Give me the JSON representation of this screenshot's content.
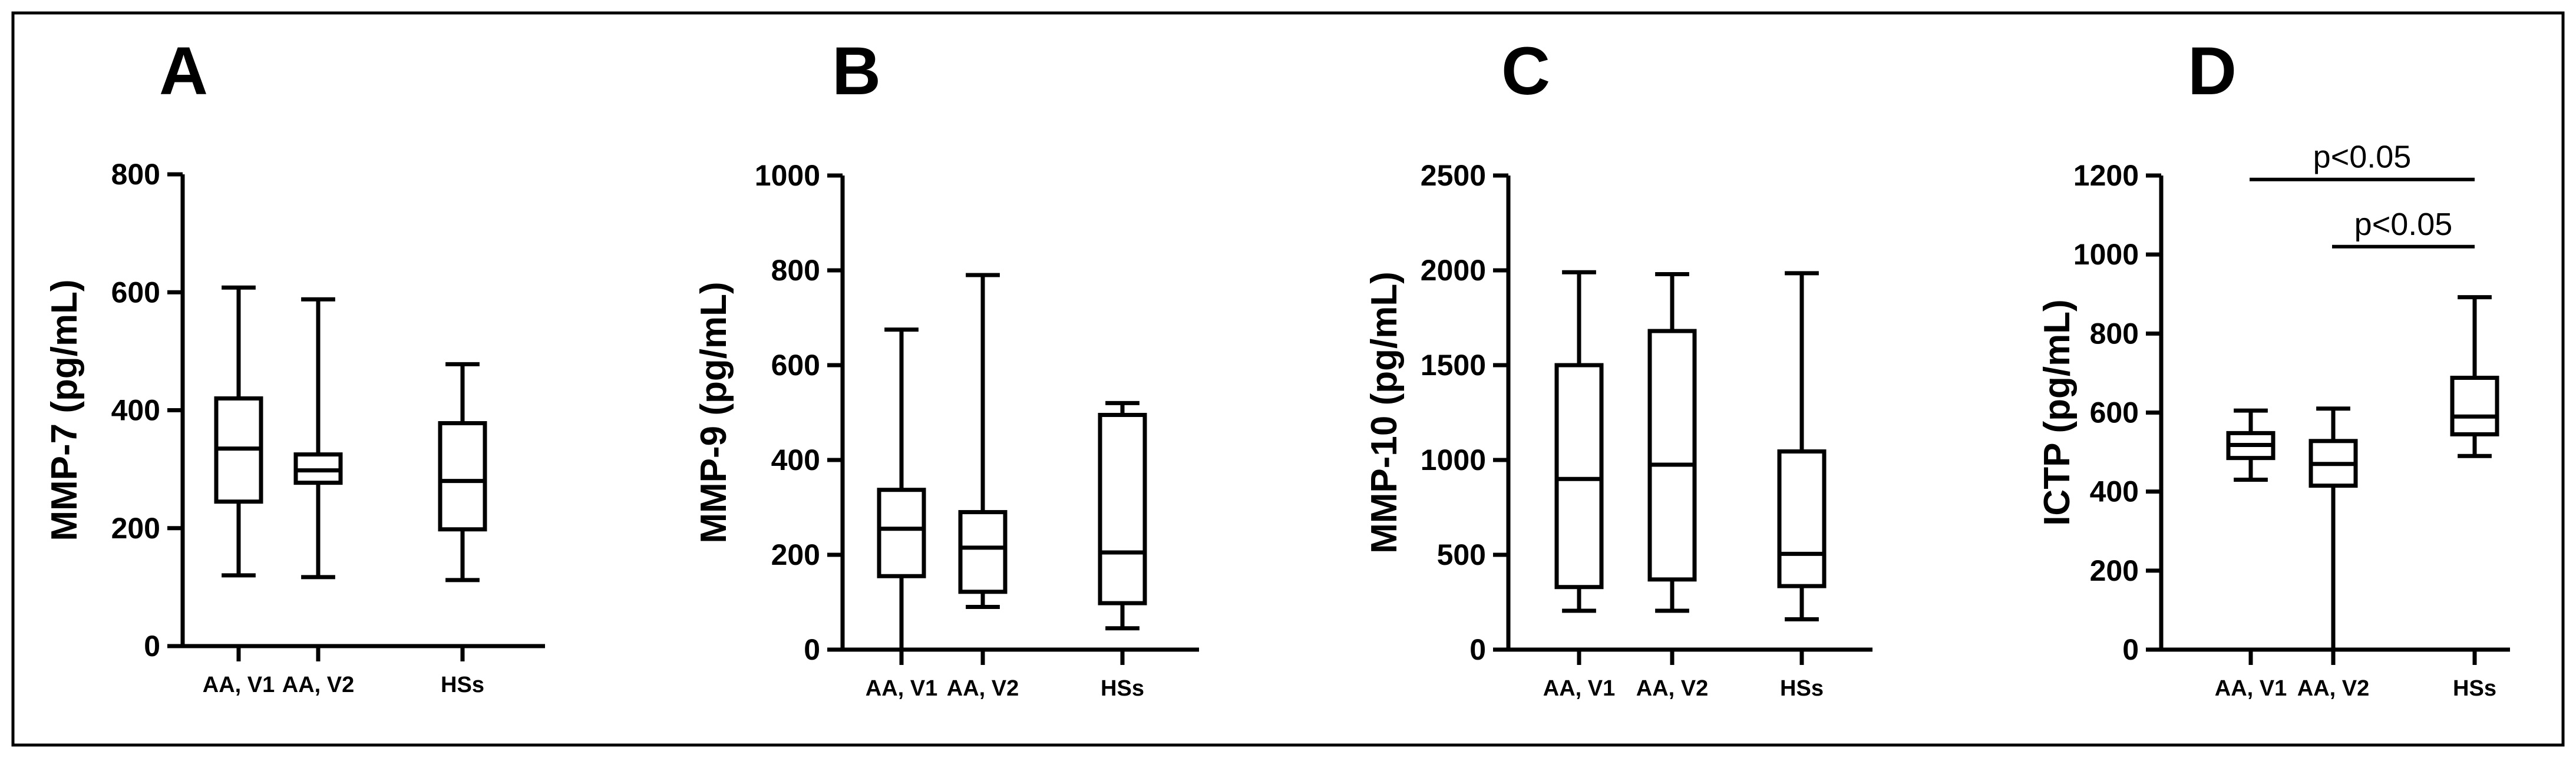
{
  "chart_data": [
    {
      "type": "box",
      "panel_label": "A",
      "ylabel": "MMP-7 (pg/mL)",
      "ylim": [
        0,
        800
      ],
      "yticks": [
        0,
        200,
        400,
        600,
        800
      ],
      "categories": [
        "AA, V1",
        "AA, V2",
        "HSs"
      ],
      "boxes": [
        {
          "min": 120,
          "q1": 245,
          "median": 335,
          "q3": 420,
          "max": 608
        },
        {
          "min": 117,
          "q1": 277,
          "median": 298,
          "q3": 325,
          "max": 588
        },
        {
          "min": 112,
          "q1": 198,
          "median": 280,
          "q3": 378,
          "max": 478
        }
      ],
      "annotations": []
    },
    {
      "type": "box",
      "panel_label": "B",
      "ylabel": "MMP-9 (pg/mL)",
      "ylim": [
        0,
        1000
      ],
      "yticks": [
        0,
        200,
        400,
        600,
        800,
        1000
      ],
      "categories": [
        "AA, V1",
        "AA, V2",
        "HSs"
      ],
      "boxes": [
        {
          "min": 0,
          "q1": 155,
          "median": 255,
          "q3": 337,
          "max": 675
        },
        {
          "min": 90,
          "q1": 122,
          "median": 215,
          "q3": 290,
          "max": 790
        },
        {
          "min": 45,
          "q1": 98,
          "median": 205,
          "q3": 495,
          "max": 520
        }
      ],
      "annotations": []
    },
    {
      "type": "box",
      "panel_label": "C",
      "ylabel": "MMP-10 (pg/mL)",
      "ylim": [
        0,
        2500
      ],
      "yticks": [
        0,
        500,
        1000,
        1500,
        2000,
        2500
      ],
      "categories": [
        "AA, V1",
        "AA, V2",
        "HSs"
      ],
      "boxes": [
        {
          "min": 205,
          "q1": 330,
          "median": 900,
          "q3": 1500,
          "max": 1990
        },
        {
          "min": 205,
          "q1": 370,
          "median": 975,
          "q3": 1680,
          "max": 1980
        },
        {
          "min": 160,
          "q1": 335,
          "median": 505,
          "q3": 1045,
          "max": 1985
        }
      ],
      "annotations": []
    },
    {
      "type": "box",
      "panel_label": "D",
      "ylabel": "ICTP (pg/mL)",
      "ylim": [
        0,
        1200
      ],
      "yticks": [
        0,
        200,
        400,
        600,
        800,
        1000,
        1200
      ],
      "categories": [
        "AA, V1",
        "AA, V2",
        "HSs"
      ],
      "boxes": [
        {
          "min": 430,
          "q1": 485,
          "median": 518,
          "q3": 548,
          "max": 605
        },
        {
          "min": 0,
          "q1": 415,
          "median": 470,
          "q3": 528,
          "max": 610
        },
        {
          "min": 490,
          "q1": 545,
          "median": 590,
          "q3": 688,
          "max": 892
        }
      ],
      "annotations": [
        {
          "text": "p<0.05",
          "from": 0,
          "to": 2,
          "y": 1190
        },
        {
          "text": "p<0.05",
          "from": 1,
          "to": 2,
          "y": 1020
        }
      ]
    }
  ]
}
